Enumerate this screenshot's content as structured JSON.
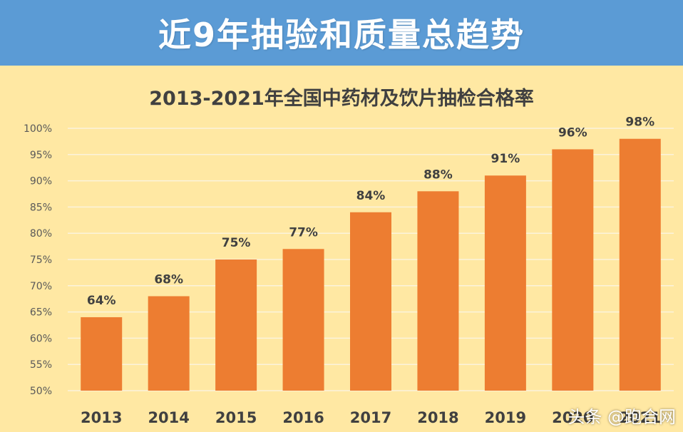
{
  "header": {
    "title": "近9年抽验和质量总趋势"
  },
  "watermark": "头条 @跑合网",
  "chart_data": {
    "type": "bar",
    "title": "2013-2021年全国中药材及饮片抽检合格率",
    "categories": [
      "2013",
      "2014",
      "2015",
      "2016",
      "2017",
      "2018",
      "2019",
      "2020",
      "2021"
    ],
    "values": [
      64,
      68,
      75,
      77,
      84,
      88,
      91,
      96,
      98
    ],
    "data_labels": [
      "64%",
      "68%",
      "75%",
      "77%",
      "84%",
      "88%",
      "91%",
      "96%",
      "98%"
    ],
    "ylim": [
      50,
      100
    ],
    "yticks": [
      50,
      55,
      60,
      65,
      70,
      75,
      80,
      85,
      90,
      95,
      100
    ],
    "ytick_labels": [
      "50%",
      "55%",
      "60%",
      "65%",
      "70%",
      "75%",
      "80%",
      "85%",
      "90%",
      "95%",
      "100%"
    ],
    "grid": true,
    "colors": {
      "bar": "#ed7d31",
      "grid": "#fbf3dc",
      "axis_text": "#595959",
      "title_text": "#404040",
      "label_text": "#404040"
    }
  }
}
